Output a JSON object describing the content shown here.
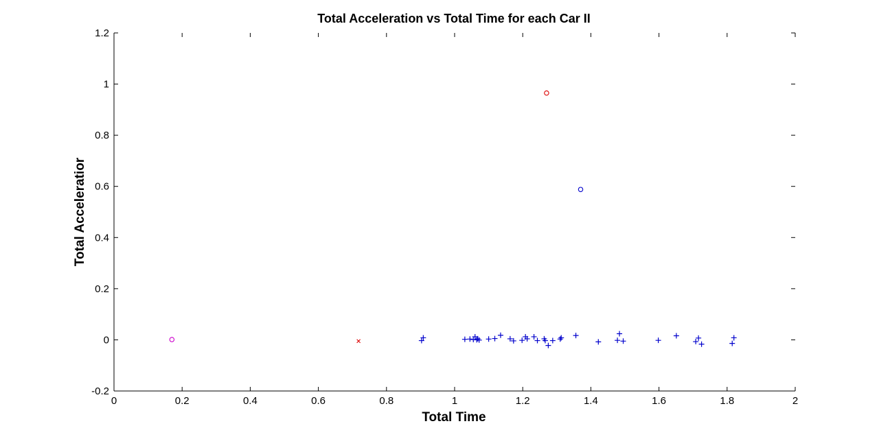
{
  "chart_data": {
    "type": "scatter",
    "title": "Total Acceleration vs Total Time for each Car II",
    "xlabel": "Total Time",
    "ylabel": "Total Acceleratior",
    "xlim": [
      0,
      2
    ],
    "ylim": [
      -0.2,
      1.2
    ],
    "xticks": [
      "0",
      "0.2",
      "0.4",
      "0.6",
      "0.8",
      "1",
      "1.2",
      "1.4",
      "1.6",
      "1.8",
      "2"
    ],
    "yticks": [
      "-0.2",
      "0",
      "0.2",
      "0.4",
      "0.6",
      "0.8",
      "1",
      "1.2"
    ],
    "grid": false,
    "series": [
      {
        "marker": "plus",
        "color": "#0000cc",
        "points": [
          [
            0.903,
            -0.003
          ],
          [
            0.908,
            0.008
          ],
          [
            1.03,
            0.002
          ],
          [
            1.045,
            0.003
          ],
          [
            1.055,
            0.001
          ],
          [
            1.06,
            0.012
          ],
          [
            1.065,
            0.0
          ],
          [
            1.068,
            0.004
          ],
          [
            1.072,
            -0.001
          ],
          [
            1.1,
            0.003
          ],
          [
            1.118,
            0.005
          ],
          [
            1.135,
            0.018
          ],
          [
            1.163,
            0.004
          ],
          [
            1.173,
            -0.004
          ],
          [
            1.198,
            -0.002
          ],
          [
            1.208,
            0.012
          ],
          [
            1.213,
            0.004
          ],
          [
            1.233,
            0.012
          ],
          [
            1.243,
            -0.003
          ],
          [
            1.263,
            0.004
          ],
          [
            1.266,
            -0.003
          ],
          [
            1.275,
            -0.022
          ],
          [
            1.288,
            -0.003
          ],
          [
            1.31,
            0.003
          ],
          [
            1.313,
            0.008
          ],
          [
            1.356,
            0.017
          ],
          [
            1.422,
            -0.008
          ],
          [
            1.478,
            -0.002
          ],
          [
            1.484,
            0.024
          ],
          [
            1.495,
            -0.005
          ],
          [
            1.598,
            -0.002
          ],
          [
            1.651,
            0.016
          ],
          [
            1.708,
            -0.007
          ],
          [
            1.716,
            0.007
          ],
          [
            1.725,
            -0.017
          ],
          [
            1.815,
            -0.014
          ],
          [
            1.82,
            0.008
          ]
        ]
      },
      {
        "marker": "circle",
        "color": "#dd0000",
        "points": [
          [
            1.27,
            0.965
          ]
        ]
      },
      {
        "marker": "circle",
        "color": "#0000cc",
        "points": [
          [
            1.37,
            0.588
          ]
        ]
      },
      {
        "marker": "circle",
        "color": "#cc00cc",
        "points": [
          [
            0.17,
            0.001
          ]
        ]
      },
      {
        "marker": "x",
        "color": "#dd0000",
        "points": [
          [
            0.718,
            -0.005
          ]
        ]
      }
    ]
  }
}
